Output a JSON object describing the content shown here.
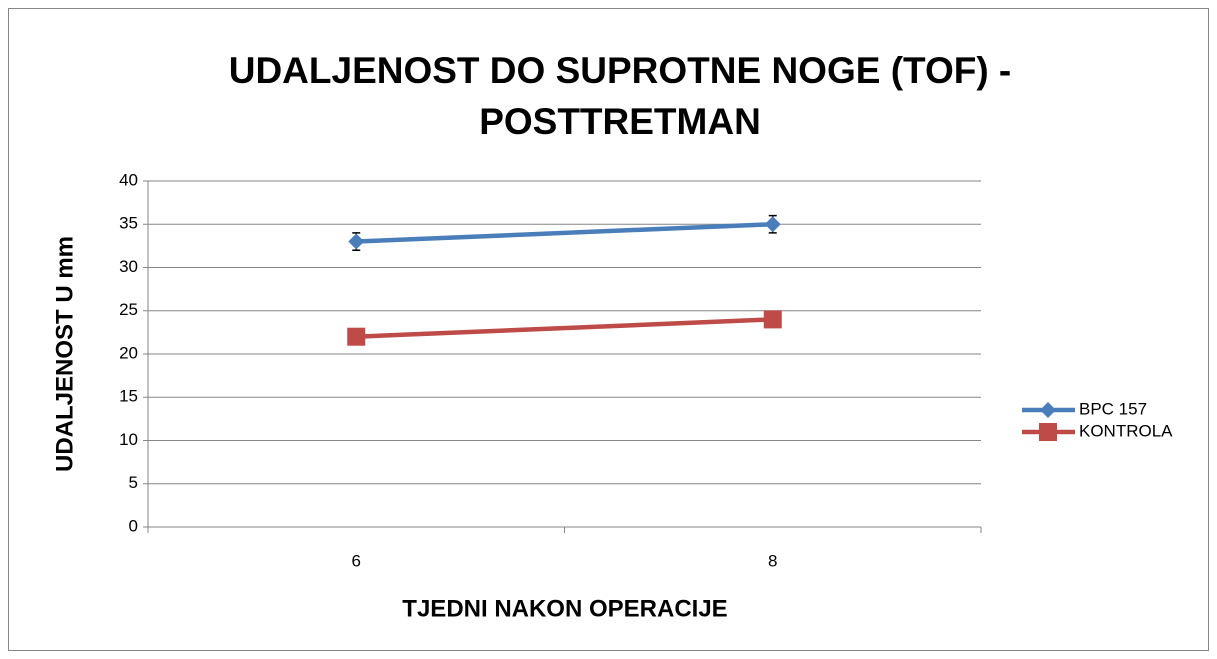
{
  "chart_data": {
    "type": "line",
    "title": [
      "UDALJENOST DO SUPROTNE NOGE (TOF) -",
      "POSTTRETMAN"
    ],
    "x_label": "TJEDNI NAKON OPERACIJE",
    "y_label": "UDALJENOST U mm",
    "categories": [
      "6",
      "8"
    ],
    "series": [
      {
        "name": "BPC 157",
        "color": "#4a7ebb",
        "marker": "diamond",
        "values": [
          33,
          35
        ],
        "errors": [
          1,
          1
        ]
      },
      {
        "name": "KONTROLA",
        "color": "#be4b48",
        "marker": "square",
        "values": [
          22,
          24
        ]
      }
    ],
    "ylim": [
      0,
      40
    ],
    "yticks": [
      0,
      5,
      10,
      15,
      20,
      25,
      30,
      35,
      40
    ],
    "grid": true,
    "legend": "right"
  }
}
